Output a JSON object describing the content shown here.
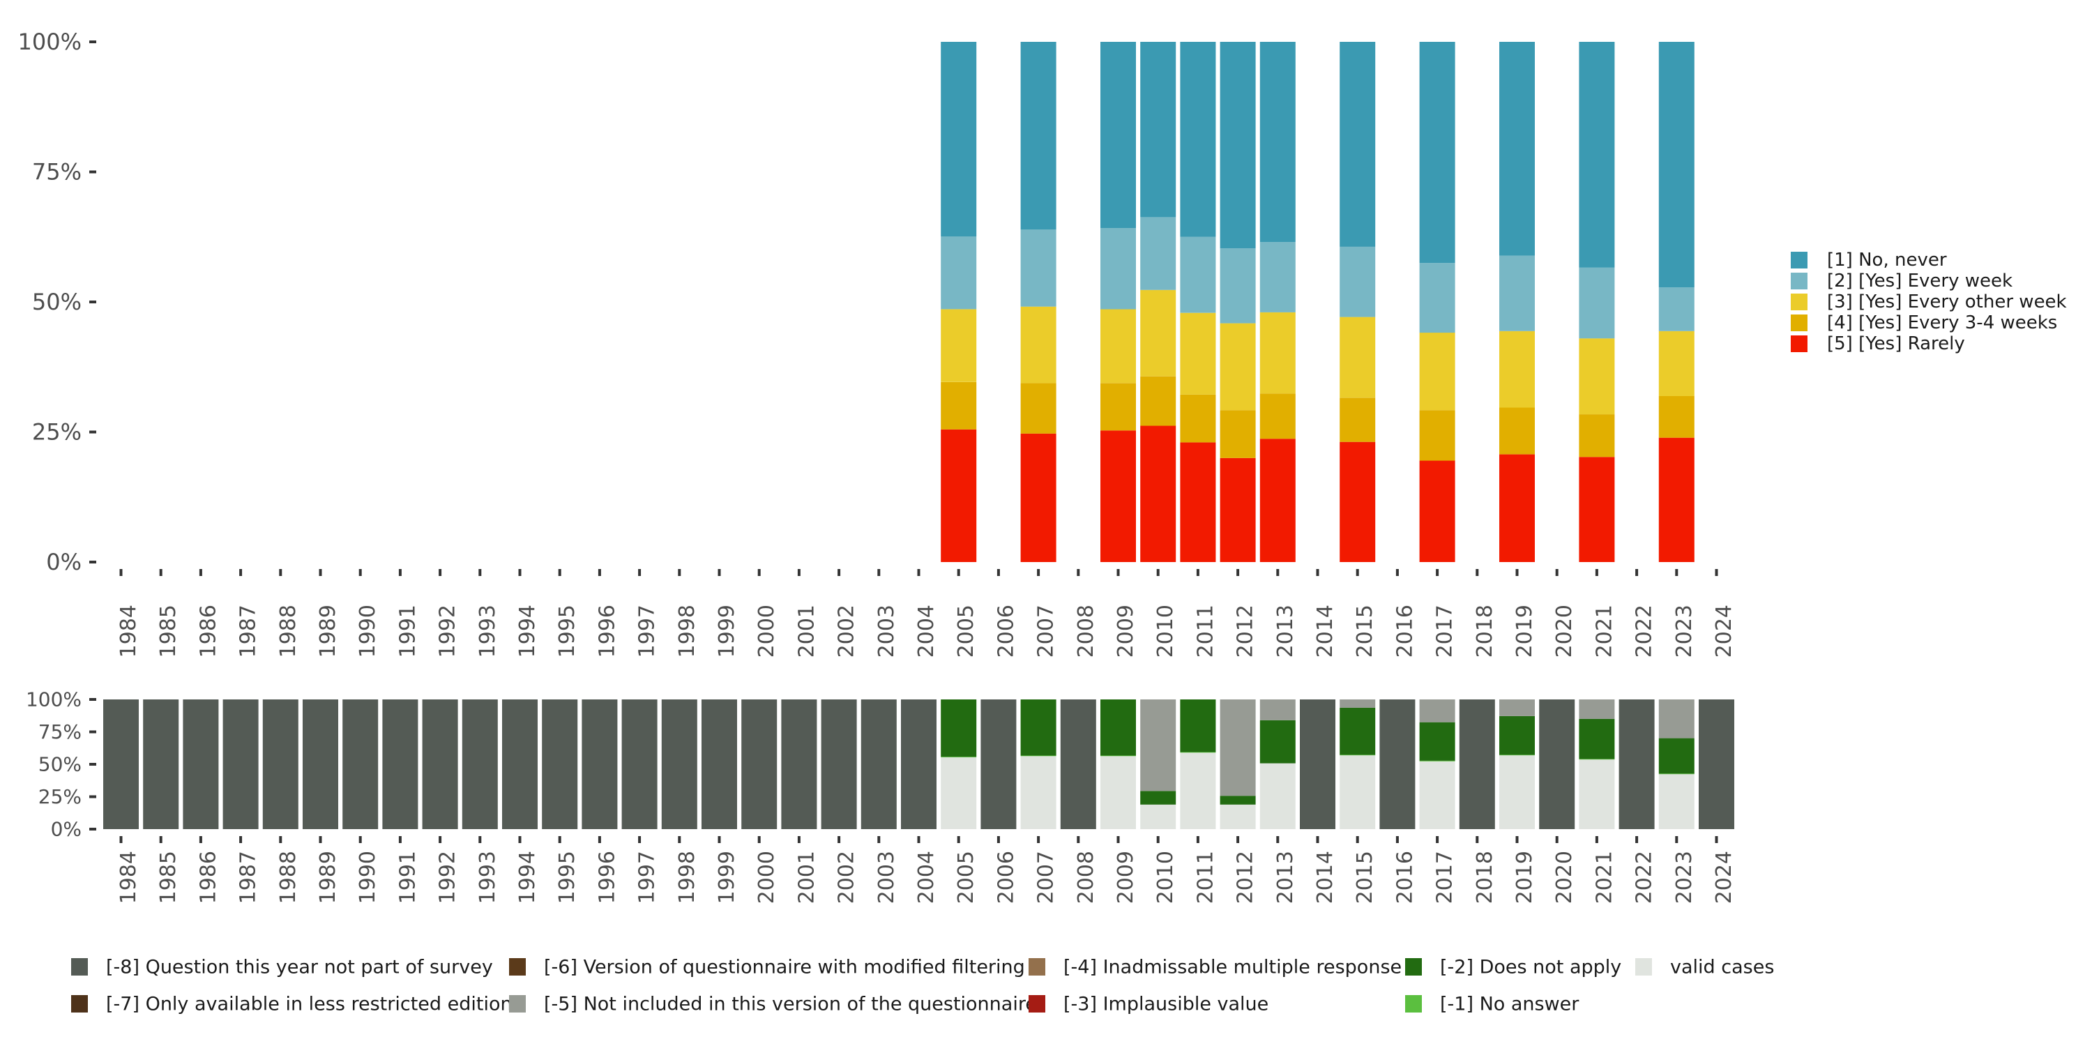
{
  "chart_data": [
    {
      "type": "bar",
      "stacked": true,
      "normalized": true,
      "title": "",
      "xlabel": "",
      "ylabel": "",
      "ylim": [
        0,
        100
      ],
      "y_ticks": [
        "0%",
        "25%",
        "50%",
        "75%",
        "100%"
      ],
      "y_tick_values": [
        0,
        25,
        50,
        75,
        100
      ],
      "categories": [
        "1984",
        "1985",
        "1986",
        "1987",
        "1988",
        "1989",
        "1990",
        "1991",
        "1992",
        "1993",
        "1994",
        "1995",
        "1996",
        "1997",
        "1998",
        "1999",
        "2000",
        "2001",
        "2002",
        "2003",
        "2004",
        "2005",
        "2006",
        "2007",
        "2008",
        "2009",
        "2010",
        "2011",
        "2012",
        "2013",
        "2014",
        "2015",
        "2016",
        "2017",
        "2018",
        "2019",
        "2020",
        "2021",
        "2022",
        "2023",
        "2024"
      ],
      "grid": false,
      "legend_position": "right",
      "series": [
        {
          "name": "[5] [Yes] Rarely",
          "color": "#f21a00",
          "values": {
            "2005": 25.5,
            "2007": 24.7,
            "2009": 25.3,
            "2010": 26.2,
            "2011": 23.0,
            "2012": 20.0,
            "2013": 23.7,
            "2015": 23.1,
            "2017": 19.5,
            "2019": 20.7,
            "2021": 20.2,
            "2023": 23.9
          }
        },
        {
          "name": "[4] [Yes] Every 3-4 weeks",
          "color": "#e1af00",
          "values": {
            "2005": 9.1,
            "2007": 9.7,
            "2009": 9.1,
            "2010": 9.5,
            "2011": 9.2,
            "2012": 9.2,
            "2013": 8.7,
            "2015": 8.5,
            "2017": 9.7,
            "2019": 9.0,
            "2021": 8.2,
            "2023": 8.0
          }
        },
        {
          "name": "[3] [Yes] Every other week",
          "color": "#ebcc2a",
          "values": {
            "2005": 14.0,
            "2007": 14.7,
            "2009": 14.2,
            "2010": 16.6,
            "2011": 15.7,
            "2012": 16.7,
            "2013": 15.6,
            "2015": 15.5,
            "2017": 14.9,
            "2019": 14.7,
            "2021": 14.6,
            "2023": 12.5
          }
        },
        {
          "name": "[2] [Yes] Every week",
          "color": "#78b7c5",
          "values": {
            "2005": 14.0,
            "2007": 14.8,
            "2009": 15.6,
            "2010": 14.0,
            "2011": 14.6,
            "2012": 14.4,
            "2013": 13.5,
            "2015": 13.5,
            "2017": 13.4,
            "2019": 14.5,
            "2021": 13.6,
            "2023": 8.4
          }
        },
        {
          "name": "[1] No, never",
          "color": "#3b9ab2",
          "values": {
            "2005": 37.4,
            "2007": 36.1,
            "2009": 35.8,
            "2010": 33.7,
            "2011": 37.5,
            "2012": 39.7,
            "2013": 38.5,
            "2015": 39.4,
            "2017": 42.5,
            "2019": 41.1,
            "2021": 43.4,
            "2023": 47.2
          }
        }
      ],
      "legend": [
        {
          "label": "[1] No, never",
          "color": "#3b9ab2"
        },
        {
          "label": "[2] [Yes] Every week",
          "color": "#78b7c5"
        },
        {
          "label": "[3] [Yes] Every other week",
          "color": "#ebcc2a"
        },
        {
          "label": "[4] [Yes] Every 3-4 weeks",
          "color": "#e1af00"
        },
        {
          "label": "[5] [Yes] Rarely",
          "color": "#f21a00"
        }
      ]
    },
    {
      "type": "bar",
      "stacked": true,
      "normalized": true,
      "title": "",
      "xlabel": "",
      "ylabel": "",
      "ylim": [
        0,
        100
      ],
      "y_ticks": [
        "0%",
        "25%",
        "50%",
        "75%",
        "100%"
      ],
      "y_tick_values": [
        0,
        25,
        50,
        75,
        100
      ],
      "categories": [
        "1984",
        "1985",
        "1986",
        "1987",
        "1988",
        "1989",
        "1990",
        "1991",
        "1992",
        "1993",
        "1994",
        "1995",
        "1996",
        "1997",
        "1998",
        "1999",
        "2000",
        "2001",
        "2002",
        "2003",
        "2004",
        "2005",
        "2006",
        "2007",
        "2008",
        "2009",
        "2010",
        "2011",
        "2012",
        "2013",
        "2014",
        "2015",
        "2016",
        "2017",
        "2018",
        "2019",
        "2020",
        "2021",
        "2022",
        "2023",
        "2024"
      ],
      "grid": false,
      "legend_position": "bottom",
      "stack_order": [
        "valid",
        "-1",
        "-2",
        "-3",
        "-4",
        "-5",
        "-6",
        "-7",
        "-8"
      ],
      "series": [
        {
          "key": "valid",
          "name": "valid cases",
          "color": "#e0e4df",
          "values": {
            "2005": 55.3,
            "2007": 56.3,
            "2009": 56.3,
            "2010": 18.9,
            "2011": 59.0,
            "2012": 18.9,
            "2013": 50.8,
            "2015": 56.9,
            "2017": 52.4,
            "2019": 56.9,
            "2021": 53.7,
            "2023": 42.4
          }
        },
        {
          "key": "-1",
          "name": "[-1] No answer",
          "color": "#5bbf3f",
          "values": {
            "2005": 0.5,
            "2007": 0.4,
            "2009": 0.4,
            "2011": 0.4,
            "2015": 0.4,
            "2017": 0.3,
            "2019": 0.4,
            "2021": 0.4,
            "2023": 0.4
          }
        },
        {
          "key": "-2",
          "name": "[-2] Does not apply",
          "color": "#226b11",
          "values": {
            "2005": 44.2,
            "2007": 43.3,
            "2009": 43.3,
            "2010": 10.5,
            "2011": 40.6,
            "2012": 6.8,
            "2013": 33.2,
            "2015": 36.3,
            "2017": 29.7,
            "2019": 29.9,
            "2021": 30.9,
            "2023": 27.3
          }
        },
        {
          "key": "-5",
          "name": "[-5] Not included in this version of the questionnaire",
          "color": "#979b94",
          "values": {
            "2010": 70.6,
            "2012": 74.3,
            "2013": 16.0,
            "2015": 6.4,
            "2017": 17.6,
            "2019": 12.8,
            "2021": 15.0,
            "2023": 29.9
          }
        },
        {
          "key": "-8",
          "name": "[-8] Question this year not part of survey",
          "color": "#545b55",
          "values": {
            "1984": 100,
            "1985": 100,
            "1986": 100,
            "1987": 100,
            "1988": 100,
            "1989": 100,
            "1990": 100,
            "1991": 100,
            "1992": 100,
            "1993": 100,
            "1994": 100,
            "1995": 100,
            "1996": 100,
            "1997": 100,
            "1998": 100,
            "1999": 100,
            "2000": 100,
            "2001": 100,
            "2002": 100,
            "2003": 100,
            "2004": 100,
            "2006": 100,
            "2008": 100,
            "2014": 100,
            "2016": 100,
            "2018": 100,
            "2020": 100,
            "2022": 100,
            "2024": 100
          }
        }
      ],
      "legend": [
        {
          "label": "[-8] Question this year not part of survey",
          "color": "#545b55"
        },
        {
          "label": "[-7] Only available in less restricted edition",
          "color": "#4e321a"
        },
        {
          "label": "[-6] Version of questionnaire with modified filtering",
          "color": "#5b3a1a"
        },
        {
          "label": "[-5] Not included in this version of the questionnaire",
          "color": "#979b94"
        },
        {
          "label": "[-4] Inadmissable multiple response",
          "color": "#93704c"
        },
        {
          "label": "[-3] Implausible value",
          "color": "#a51c14"
        },
        {
          "label": "[-2] Does not apply",
          "color": "#226b11"
        },
        {
          "label": "[-1] No answer",
          "color": "#5bbf3f"
        },
        {
          "label": "valid cases",
          "color": "#e0e4df"
        }
      ]
    }
  ]
}
